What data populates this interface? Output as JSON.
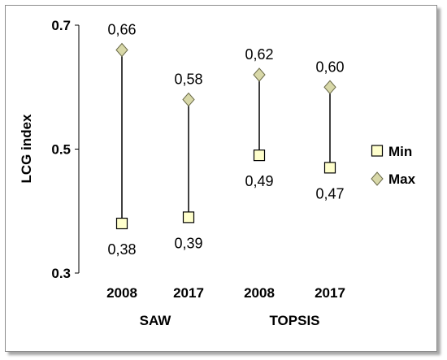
{
  "chart_data": {
    "type": "scatter",
    "ylabel": "LCG index",
    "ylim": [
      0.3,
      0.7
    ],
    "yticks": [
      "0.3",
      "0.5",
      "0.7"
    ],
    "categories": [
      "2008",
      "2017",
      "2008",
      "2017"
    ],
    "groups": [
      {
        "label": "SAW",
        "span": [
          0,
          1
        ]
      },
      {
        "label": "TOPSIS",
        "span": [
          2,
          3
        ]
      }
    ],
    "series": [
      {
        "name": "Min",
        "values": [
          0.38,
          0.39,
          0.49,
          0.47
        ],
        "labels": [
          "0,38",
          "0,39",
          "0,49",
          "0,47"
        ],
        "marker": "square",
        "color": "#FFFFCC"
      },
      {
        "name": "Max",
        "values": [
          0.66,
          0.58,
          0.62,
          0.6
        ],
        "labels": [
          "0,66",
          "0,58",
          "0,62",
          "0,60"
        ],
        "marker": "diamond",
        "color": "#D8D8A8"
      }
    ],
    "legend_position": "right",
    "grid": false
  }
}
